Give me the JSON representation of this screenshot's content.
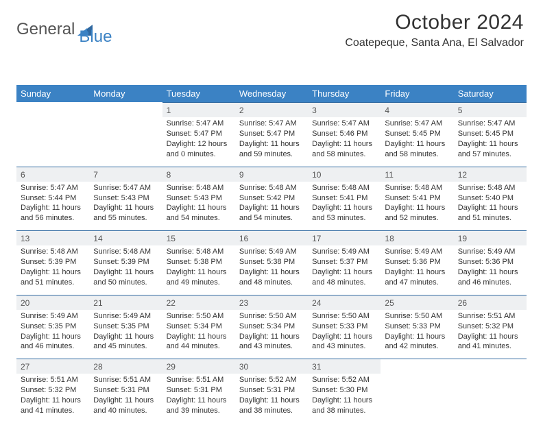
{
  "brand": {
    "part1": "General",
    "part2": "Blue"
  },
  "title": "October 2024",
  "location": "Coatepeque, Santa Ana, El Salvador",
  "weekdays": [
    "Sunday",
    "Monday",
    "Tuesday",
    "Wednesday",
    "Thursday",
    "Friday",
    "Saturday"
  ],
  "colors": {
    "header": "#3b82c4",
    "divider": "#2f68a0",
    "alt_row": "#eef0f2"
  },
  "first_weekday_index": 2,
  "days": [
    {
      "n": 1,
      "sunrise": "5:47 AM",
      "sunset": "5:47 PM",
      "daylight": "12 hours and 0 minutes."
    },
    {
      "n": 2,
      "sunrise": "5:47 AM",
      "sunset": "5:47 PM",
      "daylight": "11 hours and 59 minutes."
    },
    {
      "n": 3,
      "sunrise": "5:47 AM",
      "sunset": "5:46 PM",
      "daylight": "11 hours and 58 minutes."
    },
    {
      "n": 4,
      "sunrise": "5:47 AM",
      "sunset": "5:45 PM",
      "daylight": "11 hours and 58 minutes."
    },
    {
      "n": 5,
      "sunrise": "5:47 AM",
      "sunset": "5:45 PM",
      "daylight": "11 hours and 57 minutes."
    },
    {
      "n": 6,
      "sunrise": "5:47 AM",
      "sunset": "5:44 PM",
      "daylight": "11 hours and 56 minutes."
    },
    {
      "n": 7,
      "sunrise": "5:47 AM",
      "sunset": "5:43 PM",
      "daylight": "11 hours and 55 minutes."
    },
    {
      "n": 8,
      "sunrise": "5:48 AM",
      "sunset": "5:43 PM",
      "daylight": "11 hours and 54 minutes."
    },
    {
      "n": 9,
      "sunrise": "5:48 AM",
      "sunset": "5:42 PM",
      "daylight": "11 hours and 54 minutes."
    },
    {
      "n": 10,
      "sunrise": "5:48 AM",
      "sunset": "5:41 PM",
      "daylight": "11 hours and 53 minutes."
    },
    {
      "n": 11,
      "sunrise": "5:48 AM",
      "sunset": "5:41 PM",
      "daylight": "11 hours and 52 minutes."
    },
    {
      "n": 12,
      "sunrise": "5:48 AM",
      "sunset": "5:40 PM",
      "daylight": "11 hours and 51 minutes."
    },
    {
      "n": 13,
      "sunrise": "5:48 AM",
      "sunset": "5:39 PM",
      "daylight": "11 hours and 51 minutes."
    },
    {
      "n": 14,
      "sunrise": "5:48 AM",
      "sunset": "5:39 PM",
      "daylight": "11 hours and 50 minutes."
    },
    {
      "n": 15,
      "sunrise": "5:48 AM",
      "sunset": "5:38 PM",
      "daylight": "11 hours and 49 minutes."
    },
    {
      "n": 16,
      "sunrise": "5:49 AM",
      "sunset": "5:38 PM",
      "daylight": "11 hours and 48 minutes."
    },
    {
      "n": 17,
      "sunrise": "5:49 AM",
      "sunset": "5:37 PM",
      "daylight": "11 hours and 48 minutes."
    },
    {
      "n": 18,
      "sunrise": "5:49 AM",
      "sunset": "5:36 PM",
      "daylight": "11 hours and 47 minutes."
    },
    {
      "n": 19,
      "sunrise": "5:49 AM",
      "sunset": "5:36 PM",
      "daylight": "11 hours and 46 minutes."
    },
    {
      "n": 20,
      "sunrise": "5:49 AM",
      "sunset": "5:35 PM",
      "daylight": "11 hours and 46 minutes."
    },
    {
      "n": 21,
      "sunrise": "5:49 AM",
      "sunset": "5:35 PM",
      "daylight": "11 hours and 45 minutes."
    },
    {
      "n": 22,
      "sunrise": "5:50 AM",
      "sunset": "5:34 PM",
      "daylight": "11 hours and 44 minutes."
    },
    {
      "n": 23,
      "sunrise": "5:50 AM",
      "sunset": "5:34 PM",
      "daylight": "11 hours and 43 minutes."
    },
    {
      "n": 24,
      "sunrise": "5:50 AM",
      "sunset": "5:33 PM",
      "daylight": "11 hours and 43 minutes."
    },
    {
      "n": 25,
      "sunrise": "5:50 AM",
      "sunset": "5:33 PM",
      "daylight": "11 hours and 42 minutes."
    },
    {
      "n": 26,
      "sunrise": "5:51 AM",
      "sunset": "5:32 PM",
      "daylight": "11 hours and 41 minutes."
    },
    {
      "n": 27,
      "sunrise": "5:51 AM",
      "sunset": "5:32 PM",
      "daylight": "11 hours and 41 minutes."
    },
    {
      "n": 28,
      "sunrise": "5:51 AM",
      "sunset": "5:31 PM",
      "daylight": "11 hours and 40 minutes."
    },
    {
      "n": 29,
      "sunrise": "5:51 AM",
      "sunset": "5:31 PM",
      "daylight": "11 hours and 39 minutes."
    },
    {
      "n": 30,
      "sunrise": "5:52 AM",
      "sunset": "5:31 PM",
      "daylight": "11 hours and 38 minutes."
    },
    {
      "n": 31,
      "sunrise": "5:52 AM",
      "sunset": "5:30 PM",
      "daylight": "11 hours and 38 minutes."
    }
  ]
}
